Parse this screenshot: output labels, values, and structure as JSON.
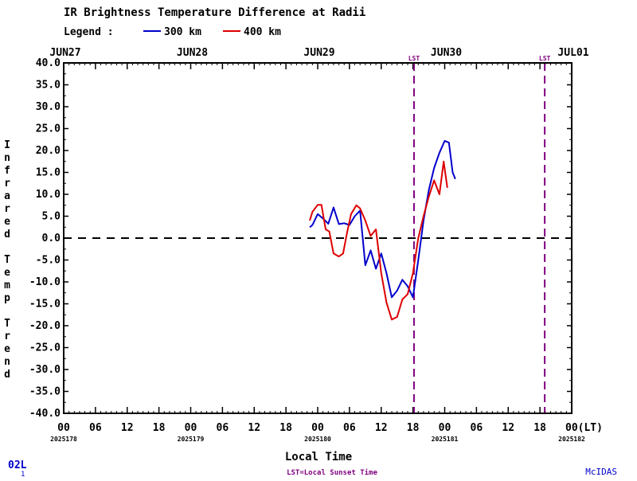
{
  "header": {
    "title": "IR Brightness Temperature Difference at Radii",
    "legend_prefix": "Legend :"
  },
  "chart_data": {
    "type": "line",
    "title": "IR Brightness Temperature Difference at Radii",
    "ylabel": "Infrared Temp Trend",
    "xlabel": "Local Time",
    "ylim": [
      -40,
      40
    ],
    "yticks": [
      "40.0",
      "35.0",
      "30.0",
      "25.0",
      "20.0",
      "15.0",
      "10.0",
      "5.0",
      "0.0",
      "-5.0",
      "-10.0",
      "-15.0",
      "-20.0",
      "-25.0",
      "-30.0",
      "-35.0",
      "-40.0"
    ],
    "xlim_hours": [
      0,
      96
    ],
    "x_unit": "hours since 2025-06-27 00 LT",
    "xticks": [
      {
        "h": 0,
        "label": "00"
      },
      {
        "h": 6,
        "label": "06"
      },
      {
        "h": 12,
        "label": "12"
      },
      {
        "h": 18,
        "label": "18"
      },
      {
        "h": 24,
        "label": "00"
      },
      {
        "h": 30,
        "label": "06"
      },
      {
        "h": 36,
        "label": "12"
      },
      {
        "h": 42,
        "label": "18"
      },
      {
        "h": 48,
        "label": "00"
      },
      {
        "h": 54,
        "label": "06"
      },
      {
        "h": 60,
        "label": "12"
      },
      {
        "h": 66,
        "label": "18"
      },
      {
        "h": 72,
        "label": "00"
      },
      {
        "h": 78,
        "label": "06"
      },
      {
        "h": 84,
        "label": "12"
      },
      {
        "h": 90,
        "label": "18"
      },
      {
        "h": 96,
        "label": "00(LT)"
      }
    ],
    "date_labels": [
      {
        "h": 0,
        "label": "JUN27"
      },
      {
        "h": 24,
        "label": "JUN28"
      },
      {
        "h": 48,
        "label": "JUN29"
      },
      {
        "h": 72,
        "label": "JUN30"
      },
      {
        "h": 96,
        "label": "JUL01"
      }
    ],
    "julian_labels": [
      {
        "h": 0,
        "label": "2025178"
      },
      {
        "h": 24,
        "label": "2025179"
      },
      {
        "h": 48,
        "label": "2025180"
      },
      {
        "h": 72,
        "label": "2025181"
      },
      {
        "h": 96,
        "label": "2025182"
      }
    ],
    "zero_line": 0,
    "sunset_lines": [
      {
        "h": 66.2,
        "label": "LST"
      },
      {
        "h": 90.9,
        "label": "LST"
      }
    ],
    "legend_placement": "top-left",
    "series": [
      {
        "name": "300 km",
        "color": "#0000cc",
        "points": [
          [
            46.5,
            2.5
          ],
          [
            47,
            3
          ],
          [
            48,
            5.5
          ],
          [
            49,
            4.5
          ],
          [
            50,
            3.3
          ],
          [
            51,
            7
          ],
          [
            52,
            3.2
          ],
          [
            53,
            3.4
          ],
          [
            54,
            3
          ],
          [
            55,
            5
          ],
          [
            56,
            6.3
          ],
          [
            57,
            -6.2
          ],
          [
            58,
            -2.8
          ],
          [
            59,
            -7
          ],
          [
            60,
            -3.5
          ],
          [
            61,
            -8
          ],
          [
            62,
            -13.5
          ],
          [
            63,
            -12
          ],
          [
            64,
            -9.5
          ],
          [
            65,
            -11
          ],
          [
            66,
            -13.5
          ],
          [
            67,
            -5
          ],
          [
            68,
            4
          ],
          [
            69,
            11
          ],
          [
            70,
            16
          ],
          [
            71,
            19.5
          ],
          [
            72,
            22.2
          ],
          [
            72.8,
            21.8
          ],
          [
            73.5,
            15
          ],
          [
            74,
            13.5
          ]
        ]
      },
      {
        "name": "400 km",
        "color": "#dd0000",
        "points": [
          [
            46.5,
            4
          ],
          [
            47,
            6
          ],
          [
            48,
            7.6
          ],
          [
            48.7,
            7.6
          ],
          [
            49.5,
            2
          ],
          [
            50.2,
            1.5
          ],
          [
            51,
            -3.5
          ],
          [
            52,
            -4.2
          ],
          [
            52.8,
            -3.5
          ],
          [
            53.5,
            1
          ],
          [
            54.3,
            5.5
          ],
          [
            55.3,
            7.5
          ],
          [
            56,
            6.8
          ],
          [
            57,
            4
          ],
          [
            58,
            0.5
          ],
          [
            59,
            2
          ],
          [
            60,
            -8
          ],
          [
            61,
            -14.7
          ],
          [
            62,
            -18.6
          ],
          [
            63,
            -18
          ],
          [
            64,
            -14
          ],
          [
            65,
            -12.8
          ],
          [
            66,
            -8
          ],
          [
            67,
            0
          ],
          [
            68,
            5
          ],
          [
            69,
            9.5
          ],
          [
            70,
            13.2
          ],
          [
            71,
            10
          ],
          [
            71.8,
            17.5
          ],
          [
            72.5,
            11.5
          ]
        ]
      }
    ]
  },
  "footer": {
    "xlabel": "Local Time",
    "lst_note": "LST=Local Sunset Time",
    "storm_id": "02L",
    "storm_sub": "1",
    "branding": "McIDAS"
  }
}
